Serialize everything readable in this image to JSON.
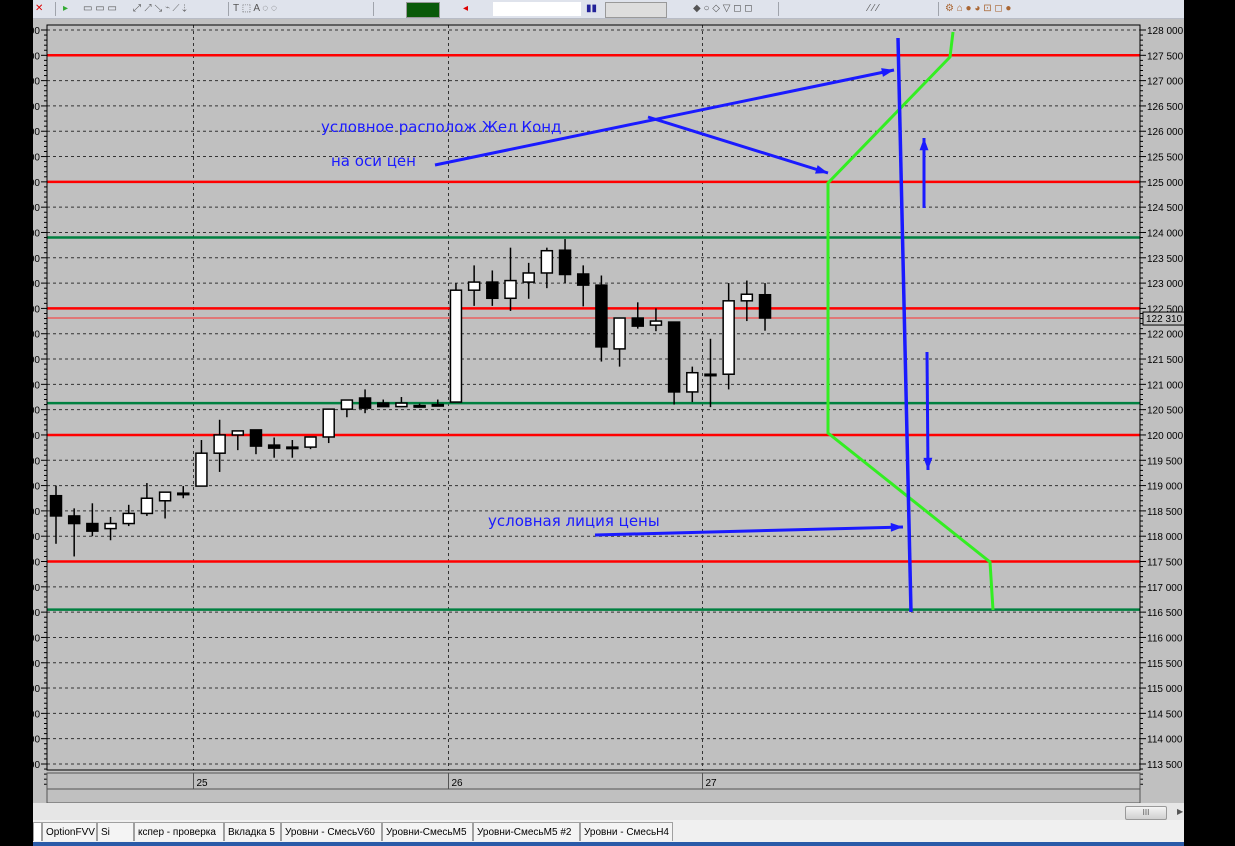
{
  "tabs": [
    "",
    "OptionFVV",
    "Si",
    "кспер - проверка",
    "Вкладка 5",
    "Уровни - СмесьV60",
    "Уровни-СмесьМ5",
    "Уровни-СмесьМ5 #2",
    "Уровни - СмесьН4"
  ],
  "scrollbar": {
    "thumb_label": "III"
  },
  "colors": {
    "background": "#c0c0c0",
    "red_level": "#ff0000",
    "green_level": "#008040",
    "annotation": "#1a1aff",
    "green_line": "#33ee22",
    "candle_up": "#ffffff",
    "candle_down": "#000000"
  },
  "chart_data": {
    "type": "candlestick",
    "ylim": [
      113500,
      128000
    ],
    "y_ticks": [
      128000,
      127500,
      127000,
      126500,
      126000,
      125500,
      125000,
      124500,
      124000,
      123500,
      123000,
      122500,
      122000,
      121500,
      121000,
      120500,
      120000,
      119500,
      119000,
      118500,
      118000,
      117500,
      117000,
      116500,
      116000,
      115500,
      115000,
      114500,
      114000,
      113500
    ],
    "y_tick_labels": [
      "128 000",
      "127 500",
      "127 000",
      "126 500",
      "126 000",
      "125 500",
      "125 000",
      "124 500",
      "124 000",
      "123 500",
      "123 000",
      "122 500",
      "122 000",
      "121 500",
      "121 000",
      "120 500",
      "120 000",
      "119 500",
      "119 000",
      "118 500",
      "118 000",
      "117 500",
      "117 000",
      "116 500",
      "116 000",
      "115 500",
      "115 000",
      "114 500",
      "114 000",
      "113 500"
    ],
    "x_day_labels": [
      {
        "label": "25",
        "candle_index": 8
      },
      {
        "label": "26",
        "candle_index": 22
      },
      {
        "label": "27",
        "candle_index": 36
      }
    ],
    "grid": true,
    "last_price_label": "122 310",
    "last_price": 122310,
    "candles": [
      [
        118800,
        119000,
        117850,
        118400
      ],
      [
        118400,
        118550,
        117600,
        118250
      ],
      [
        118250,
        118650,
        118000,
        118100
      ],
      [
        118150,
        118380,
        117920,
        118250
      ],
      [
        118250,
        118620,
        118200,
        118450
      ],
      [
        118450,
        119050,
        118400,
        118750
      ],
      [
        118700,
        118880,
        118350,
        118870
      ],
      [
        118850,
        118990,
        118750,
        118850
      ],
      [
        118990,
        119900,
        118990,
        119640
      ],
      [
        119640,
        120300,
        119270,
        120000
      ],
      [
        120000,
        120080,
        119700,
        120080
      ],
      [
        120100,
        120100,
        119620,
        119780
      ],
      [
        119800,
        119950,
        119550,
        119740
      ],
      [
        119760,
        119900,
        119550,
        119760
      ],
      [
        119760,
        119960,
        119720,
        119960
      ],
      [
        119960,
        120510,
        119840,
        120510
      ],
      [
        120510,
        120690,
        120350,
        120690
      ],
      [
        120730,
        120900,
        120430,
        120530
      ],
      [
        120630,
        120700,
        120550,
        120560
      ],
      [
        120560,
        120750,
        120550,
        120630
      ],
      [
        120580,
        120620,
        120560,
        120580
      ],
      [
        120600,
        120700,
        120580,
        120600
      ],
      [
        120650,
        123000,
        120650,
        122860
      ],
      [
        122860,
        123350,
        122550,
        123020
      ],
      [
        123020,
        123250,
        122550,
        122700
      ],
      [
        122700,
        123700,
        122450,
        123050
      ],
      [
        123020,
        123400,
        122690,
        123200
      ],
      [
        123200,
        123700,
        122900,
        123640
      ],
      [
        123650,
        123870,
        123000,
        123170
      ],
      [
        123180,
        123350,
        122540,
        122960
      ],
      [
        122960,
        123150,
        121450,
        121740
      ],
      [
        121700,
        122310,
        121350,
        122310
      ],
      [
        122310,
        122620,
        122100,
        122150
      ],
      [
        122170,
        122500,
        122050,
        122250
      ],
      [
        122230,
        122230,
        120600,
        120850
      ],
      [
        120850,
        121350,
        120650,
        121230
      ],
      [
        121200,
        121900,
        120550,
        121200
      ],
      [
        121200,
        123000,
        120900,
        122650
      ],
      [
        122650,
        123050,
        122250,
        122780
      ],
      [
        122770,
        123000,
        122060,
        122310
      ]
    ],
    "levels": [
      {
        "price": 127500,
        "color": "red"
      },
      {
        "price": 125000,
        "color": "red"
      },
      {
        "price": 123900,
        "color": "green"
      },
      {
        "price": 122500,
        "color": "red"
      },
      {
        "price": 120630,
        "color": "green"
      },
      {
        "price": 120000,
        "color": "red"
      },
      {
        "price": 117500,
        "color": "red"
      },
      {
        "price": 116550,
        "color": "green"
      }
    ],
    "annotations": [
      "условное располож Жел Конд",
      "на оси цен",
      "условная лиция цены"
    ]
  }
}
